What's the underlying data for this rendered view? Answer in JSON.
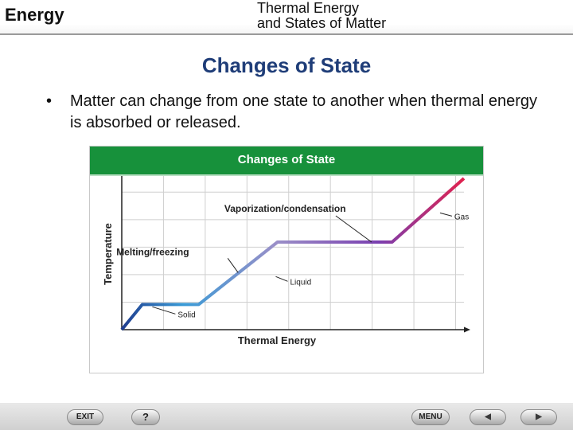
{
  "header": {
    "brand": "Energy",
    "subtitle_line1": "Thermal Energy",
    "subtitle_line2": "and States of Matter"
  },
  "slide": {
    "title": "Changes of State",
    "bullet_symbol": "•",
    "bullet_text": "Matter can change from one state to another when thermal energy is absorbed or released."
  },
  "chart_data": {
    "type": "line",
    "title": "Changes of State",
    "xlabel": "Thermal Energy",
    "ylabel": "Temperature",
    "grid": true,
    "x": [
      0,
      0.6,
      2.25,
      4.55,
      7.9,
      10.0
    ],
    "y": [
      0,
      0.95,
      0.95,
      3.3,
      3.3,
      5.7
    ],
    "gradient_colors": [
      "#1f3d8f",
      "#3a9bd6",
      "#9a8fc8",
      "#7a3fb0",
      "#e0224e"
    ],
    "annotations": [
      {
        "text": "Solid",
        "x": 0.8,
        "y": 0.95
      },
      {
        "text": "Melting/freezing",
        "x": 3.4,
        "y": 2.15
      },
      {
        "text": "Liquid",
        "x": 4.5,
        "y": 2.0
      },
      {
        "text": "Vaporization/condensation",
        "x": 7.3,
        "y": 3.3
      },
      {
        "text": "Gas",
        "x": 9.3,
        "y": 4.4
      }
    ]
  },
  "footer": {
    "exit_label": "EXIT",
    "help_label": "?",
    "menu_label": "MENU",
    "prev_label": "◀",
    "next_label": "▶"
  }
}
